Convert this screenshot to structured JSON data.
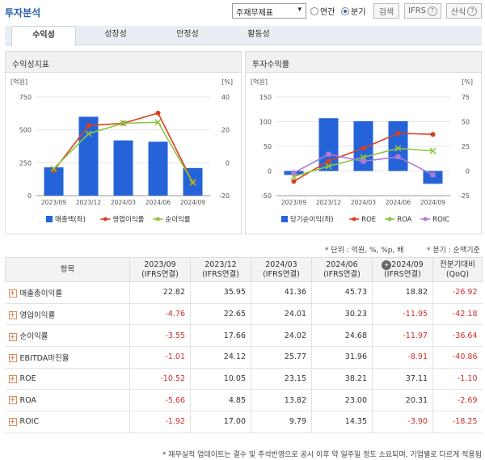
{
  "header": {
    "title": "투자분석",
    "select_value": "주재무제표",
    "radio_annual": "연간",
    "radio_quarter": "분기",
    "search_label": "검색",
    "ifrs_label": "IFRS",
    "term_label": "산식"
  },
  "tabs": [
    "수익성",
    "성장성",
    "안정성",
    "활동성"
  ],
  "left_panel": {
    "title": "수익성지표"
  },
  "right_panel": {
    "title": "투자수익률"
  },
  "chart_data": [
    {
      "type": "bar+line",
      "title": "수익성지표",
      "categories": [
        "2023/09",
        "2023/12",
        "2024/03",
        "2024/06",
        "2024/09"
      ],
      "left_unit": "[억원]",
      "right_unit": "[%]",
      "left_ticks": [
        "750",
        "500",
        "250",
        "0"
      ],
      "right_ticks": [
        "40",
        "20",
        "0",
        "-20"
      ],
      "ylim_left": [
        0,
        750
      ],
      "ylim_right": [
        -20,
        40
      ],
      "bars": {
        "name": "매출액(좌)",
        "values": [
          215,
          600,
          420,
          410,
          210
        ],
        "color": "#2563d8"
      },
      "lines": [
        {
          "name": "영업이익률",
          "values": [
            -4.76,
            22.65,
            24.01,
            30.23,
            -11.95
          ],
          "color": "#d9401f"
        },
        {
          "name": "순이익률",
          "values": [
            -3.55,
            17.66,
            24.02,
            24.68,
            -11.97
          ],
          "color": "#8cc63f"
        }
      ]
    },
    {
      "type": "bar+line",
      "title": "투자수익률",
      "categories": [
        "2023/09",
        "2023/12",
        "2024/03",
        "2024/06",
        "2024/09"
      ],
      "left_unit": "[억원]",
      "right_unit": "[%]",
      "left_ticks": [
        "150",
        "100",
        "50",
        "0",
        "-50"
      ],
      "right_ticks": [
        "75",
        "50",
        "25",
        "0",
        "-25"
      ],
      "ylim_left": [
        -50,
        150
      ],
      "ylim_right": [
        -25,
        75
      ],
      "bars": {
        "name": "당기순이익(좌)",
        "values": [
          -8,
          107,
          101,
          101,
          -26
        ],
        "color": "#2563d8"
      },
      "lines": [
        {
          "name": "ROE",
          "values": [
            -10.52,
            10.05,
            23.15,
            38.21,
            37.11
          ],
          "color": "#d9401f"
        },
        {
          "name": "ROA",
          "values": [
            -5.66,
            4.85,
            13.82,
            23.0,
            20.31
          ],
          "color": "#8cc63f"
        },
        {
          "name": "ROIC",
          "values": [
            -1.92,
            17.0,
            9.79,
            14.35,
            -3.9
          ],
          "color": "#b07ad8"
        }
      ]
    }
  ],
  "notes": {
    "unit": "* 단위 : 억원, %, %p, 배",
    "quarter": "* 분기 : 순액기준"
  },
  "table": {
    "header_item": "항목",
    "columns": [
      {
        "period": "2023/09",
        "basis": "(IFRS연결)"
      },
      {
        "period": "2023/12",
        "basis": "(IFRS연결)"
      },
      {
        "period": "2024/03",
        "basis": "(IFRS연결)"
      },
      {
        "period": "2024/06",
        "basis": "(IFRS연결)"
      },
      {
        "period": "2024/09",
        "basis": "(IFRS연결)"
      }
    ],
    "compare_header": "전분기대비",
    "compare_sub": "(QoQ)",
    "rows": [
      {
        "label": "매출총이익률",
        "values": [
          "22.82",
          "35.95",
          "41.36",
          "45.73",
          "18.82"
        ],
        "qoq": "-26.92"
      },
      {
        "label": "영업이익률",
        "values": [
          "-4.76",
          "22.65",
          "24.01",
          "30.23",
          "-11.95"
        ],
        "qoq": "-42.18"
      },
      {
        "label": "순이익률",
        "values": [
          "-3.55",
          "17.66",
          "24.02",
          "24.68",
          "-11.97"
        ],
        "qoq": "-36.64"
      },
      {
        "label": "EBITDA마진율",
        "values": [
          "-1.01",
          "24.12",
          "25.77",
          "31.96",
          "-8.91"
        ],
        "qoq": "-40.86"
      },
      {
        "label": "ROE",
        "values": [
          "-10.52",
          "10.05",
          "23.15",
          "38.21",
          "37.11"
        ],
        "qoq": "-1.10"
      },
      {
        "label": "ROA",
        "values": [
          "-5.66",
          "4.85",
          "13.82",
          "23.00",
          "20.31"
        ],
        "qoq": "-2.69"
      },
      {
        "label": "ROIC",
        "values": [
          "-1.92",
          "17.00",
          "9.79",
          "14.35",
          "-3.90"
        ],
        "qoq": "-18.25"
      }
    ]
  },
  "footnote": "* 재무실적 업데이트는 결수 및 주석반영으로 공시 이후 약 일주일 정도 소요되며, 기업별로 다르게 적용됨"
}
